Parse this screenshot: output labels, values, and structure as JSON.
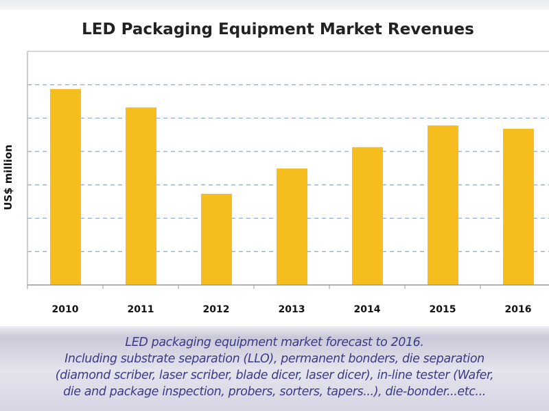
{
  "chart_data": {
    "type": "bar",
    "title": "LED Packaging Equipment Market Revenues",
    "ylabel": "US$ million",
    "xlabel": "",
    "categories": [
      "2010",
      "2011",
      "2012",
      "2013",
      "2014",
      "2015",
      "2016"
    ],
    "values": [
      5.87,
      5.32,
      2.73,
      3.49,
      4.13,
      4.78,
      4.68
    ],
    "ylim": [
      0,
      7
    ],
    "grid": true,
    "bar_color": "#f5be1e",
    "grid_color": "#8aa6c8"
  },
  "caption": {
    "lines": [
      "LED packaging equipment market forecast to 2016.",
      "Including substrate separation (LLO), permanent bonders, die separation",
      "(diamond scriber, laser scriber, blade dicer, laser dicer), in-line tester (Wafer,",
      "die and package inspection, probers, sorters, tapers...), die-bonder...etc..."
    ]
  }
}
